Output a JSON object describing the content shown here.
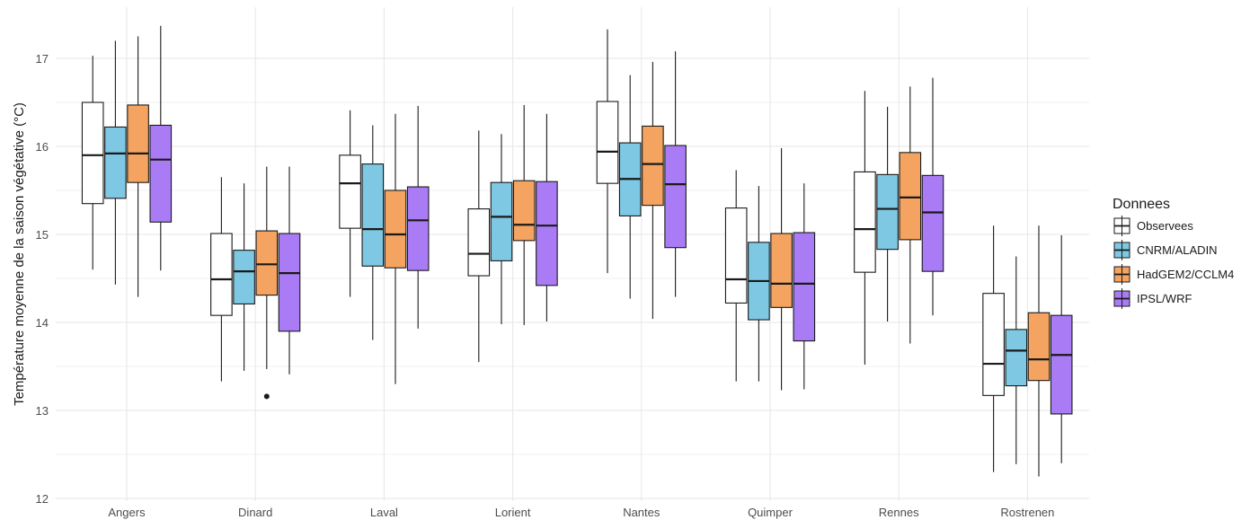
{
  "chart_data": {
    "type": "boxplot",
    "title": "",
    "xlabel": "",
    "ylabel": "Température moyenne de la saison végétative (°C)",
    "ylim": [
      12,
      17.5
    ],
    "yticks": [
      12,
      13,
      14,
      15,
      16,
      17
    ],
    "grid": true,
    "legend_position": "right",
    "legend_title": "Donnees",
    "categories": [
      "Angers",
      "Dinard",
      "Laval",
      "Lorient",
      "Nantes",
      "Quimper",
      "Rennes",
      "Rostrenen"
    ],
    "series": [
      {
        "name": "Observees",
        "color": "#ffffff",
        "boxes": [
          {
            "min": 14.6,
            "q1": 15.35,
            "median": 15.9,
            "q3": 16.5,
            "max": 17.03
          },
          {
            "min": 13.33,
            "q1": 14.08,
            "median": 14.49,
            "q3": 15.01,
            "max": 15.65
          },
          {
            "min": 14.29,
            "q1": 15.07,
            "median": 15.58,
            "q3": 15.9,
            "max": 16.41
          },
          {
            "min": 13.55,
            "q1": 14.53,
            "median": 14.78,
            "q3": 15.29,
            "max": 16.18
          },
          {
            "min": 14.56,
            "q1": 15.58,
            "median": 15.94,
            "q3": 16.51,
            "max": 17.33
          },
          {
            "min": 13.33,
            "q1": 14.22,
            "median": 14.49,
            "q3": 15.3,
            "max": 15.73
          },
          {
            "min": 13.52,
            "q1": 14.57,
            "median": 15.06,
            "q3": 15.71,
            "max": 16.63
          },
          {
            "min": 12.3,
            "q1": 13.17,
            "median": 13.53,
            "q3": 14.33,
            "max": 15.1
          }
        ]
      },
      {
        "name": "CNRM/ALADIN",
        "color": "#7ec8e3",
        "boxes": [
          {
            "min": 14.43,
            "q1": 15.41,
            "median": 15.92,
            "q3": 16.22,
            "max": 17.2
          },
          {
            "min": 13.45,
            "q1": 14.21,
            "median": 14.58,
            "q3": 14.82,
            "max": 15.58
          },
          {
            "min": 13.8,
            "q1": 14.64,
            "median": 15.06,
            "q3": 15.8,
            "max": 16.24
          },
          {
            "min": 13.98,
            "q1": 14.7,
            "median": 15.2,
            "q3": 15.59,
            "max": 16.14
          },
          {
            "min": 14.27,
            "q1": 15.21,
            "median": 15.63,
            "q3": 16.04,
            "max": 16.81
          },
          {
            "min": 13.33,
            "q1": 14.03,
            "median": 14.47,
            "q3": 14.91,
            "max": 15.55
          },
          {
            "min": 14.01,
            "q1": 14.83,
            "median": 15.29,
            "q3": 15.68,
            "max": 16.45
          },
          {
            "min": 12.39,
            "q1": 13.28,
            "median": 13.68,
            "q3": 13.92,
            "max": 14.75
          }
        ]
      },
      {
        "name": "HadGEM2/CCLM4",
        "color": "#f4a460",
        "outliers": [
          [],
          [
            13.16
          ],
          [],
          [],
          [],
          [],
          [],
          []
        ],
        "boxes": [
          {
            "min": 14.29,
            "q1": 15.59,
            "median": 15.92,
            "q3": 16.47,
            "max": 17.25
          },
          {
            "min": 13.47,
            "q1": 14.31,
            "median": 14.66,
            "q3": 15.04,
            "max": 15.77
          },
          {
            "min": 13.3,
            "q1": 14.62,
            "median": 15.0,
            "q3": 15.5,
            "max": 16.37
          },
          {
            "min": 13.97,
            "q1": 14.93,
            "median": 15.11,
            "q3": 15.61,
            "max": 16.47
          },
          {
            "min": 14.04,
            "q1": 15.33,
            "median": 15.8,
            "q3": 16.23,
            "max": 16.96
          },
          {
            "min": 13.23,
            "q1": 14.17,
            "median": 14.44,
            "q3": 15.01,
            "max": 15.98
          },
          {
            "min": 13.76,
            "q1": 14.94,
            "median": 15.42,
            "q3": 15.93,
            "max": 16.68
          },
          {
            "min": 12.25,
            "q1": 13.34,
            "median": 13.58,
            "q3": 14.11,
            "max": 15.1
          }
        ]
      },
      {
        "name": "IPSL/WRF",
        "color": "#a97cf5",
        "boxes": [
          {
            "min": 14.59,
            "q1": 15.14,
            "median": 15.85,
            "q3": 16.24,
            "max": 17.37
          },
          {
            "min": 13.41,
            "q1": 13.9,
            "median": 14.56,
            "q3": 15.01,
            "max": 15.77
          },
          {
            "min": 13.93,
            "q1": 14.59,
            "median": 15.16,
            "q3": 15.54,
            "max": 16.46
          },
          {
            "min": 14.01,
            "q1": 14.42,
            "median": 15.1,
            "q3": 15.6,
            "max": 16.37
          },
          {
            "min": 14.29,
            "q1": 14.85,
            "median": 15.57,
            "q3": 16.01,
            "max": 17.08
          },
          {
            "min": 13.24,
            "q1": 13.79,
            "median": 14.44,
            "q3": 15.02,
            "max": 15.58
          },
          {
            "min": 14.08,
            "q1": 14.58,
            "median": 15.25,
            "q3": 15.67,
            "max": 16.78
          },
          {
            "min": 12.4,
            "q1": 12.96,
            "median": 13.63,
            "q3": 14.08,
            "max": 14.99
          }
        ]
      }
    ]
  }
}
